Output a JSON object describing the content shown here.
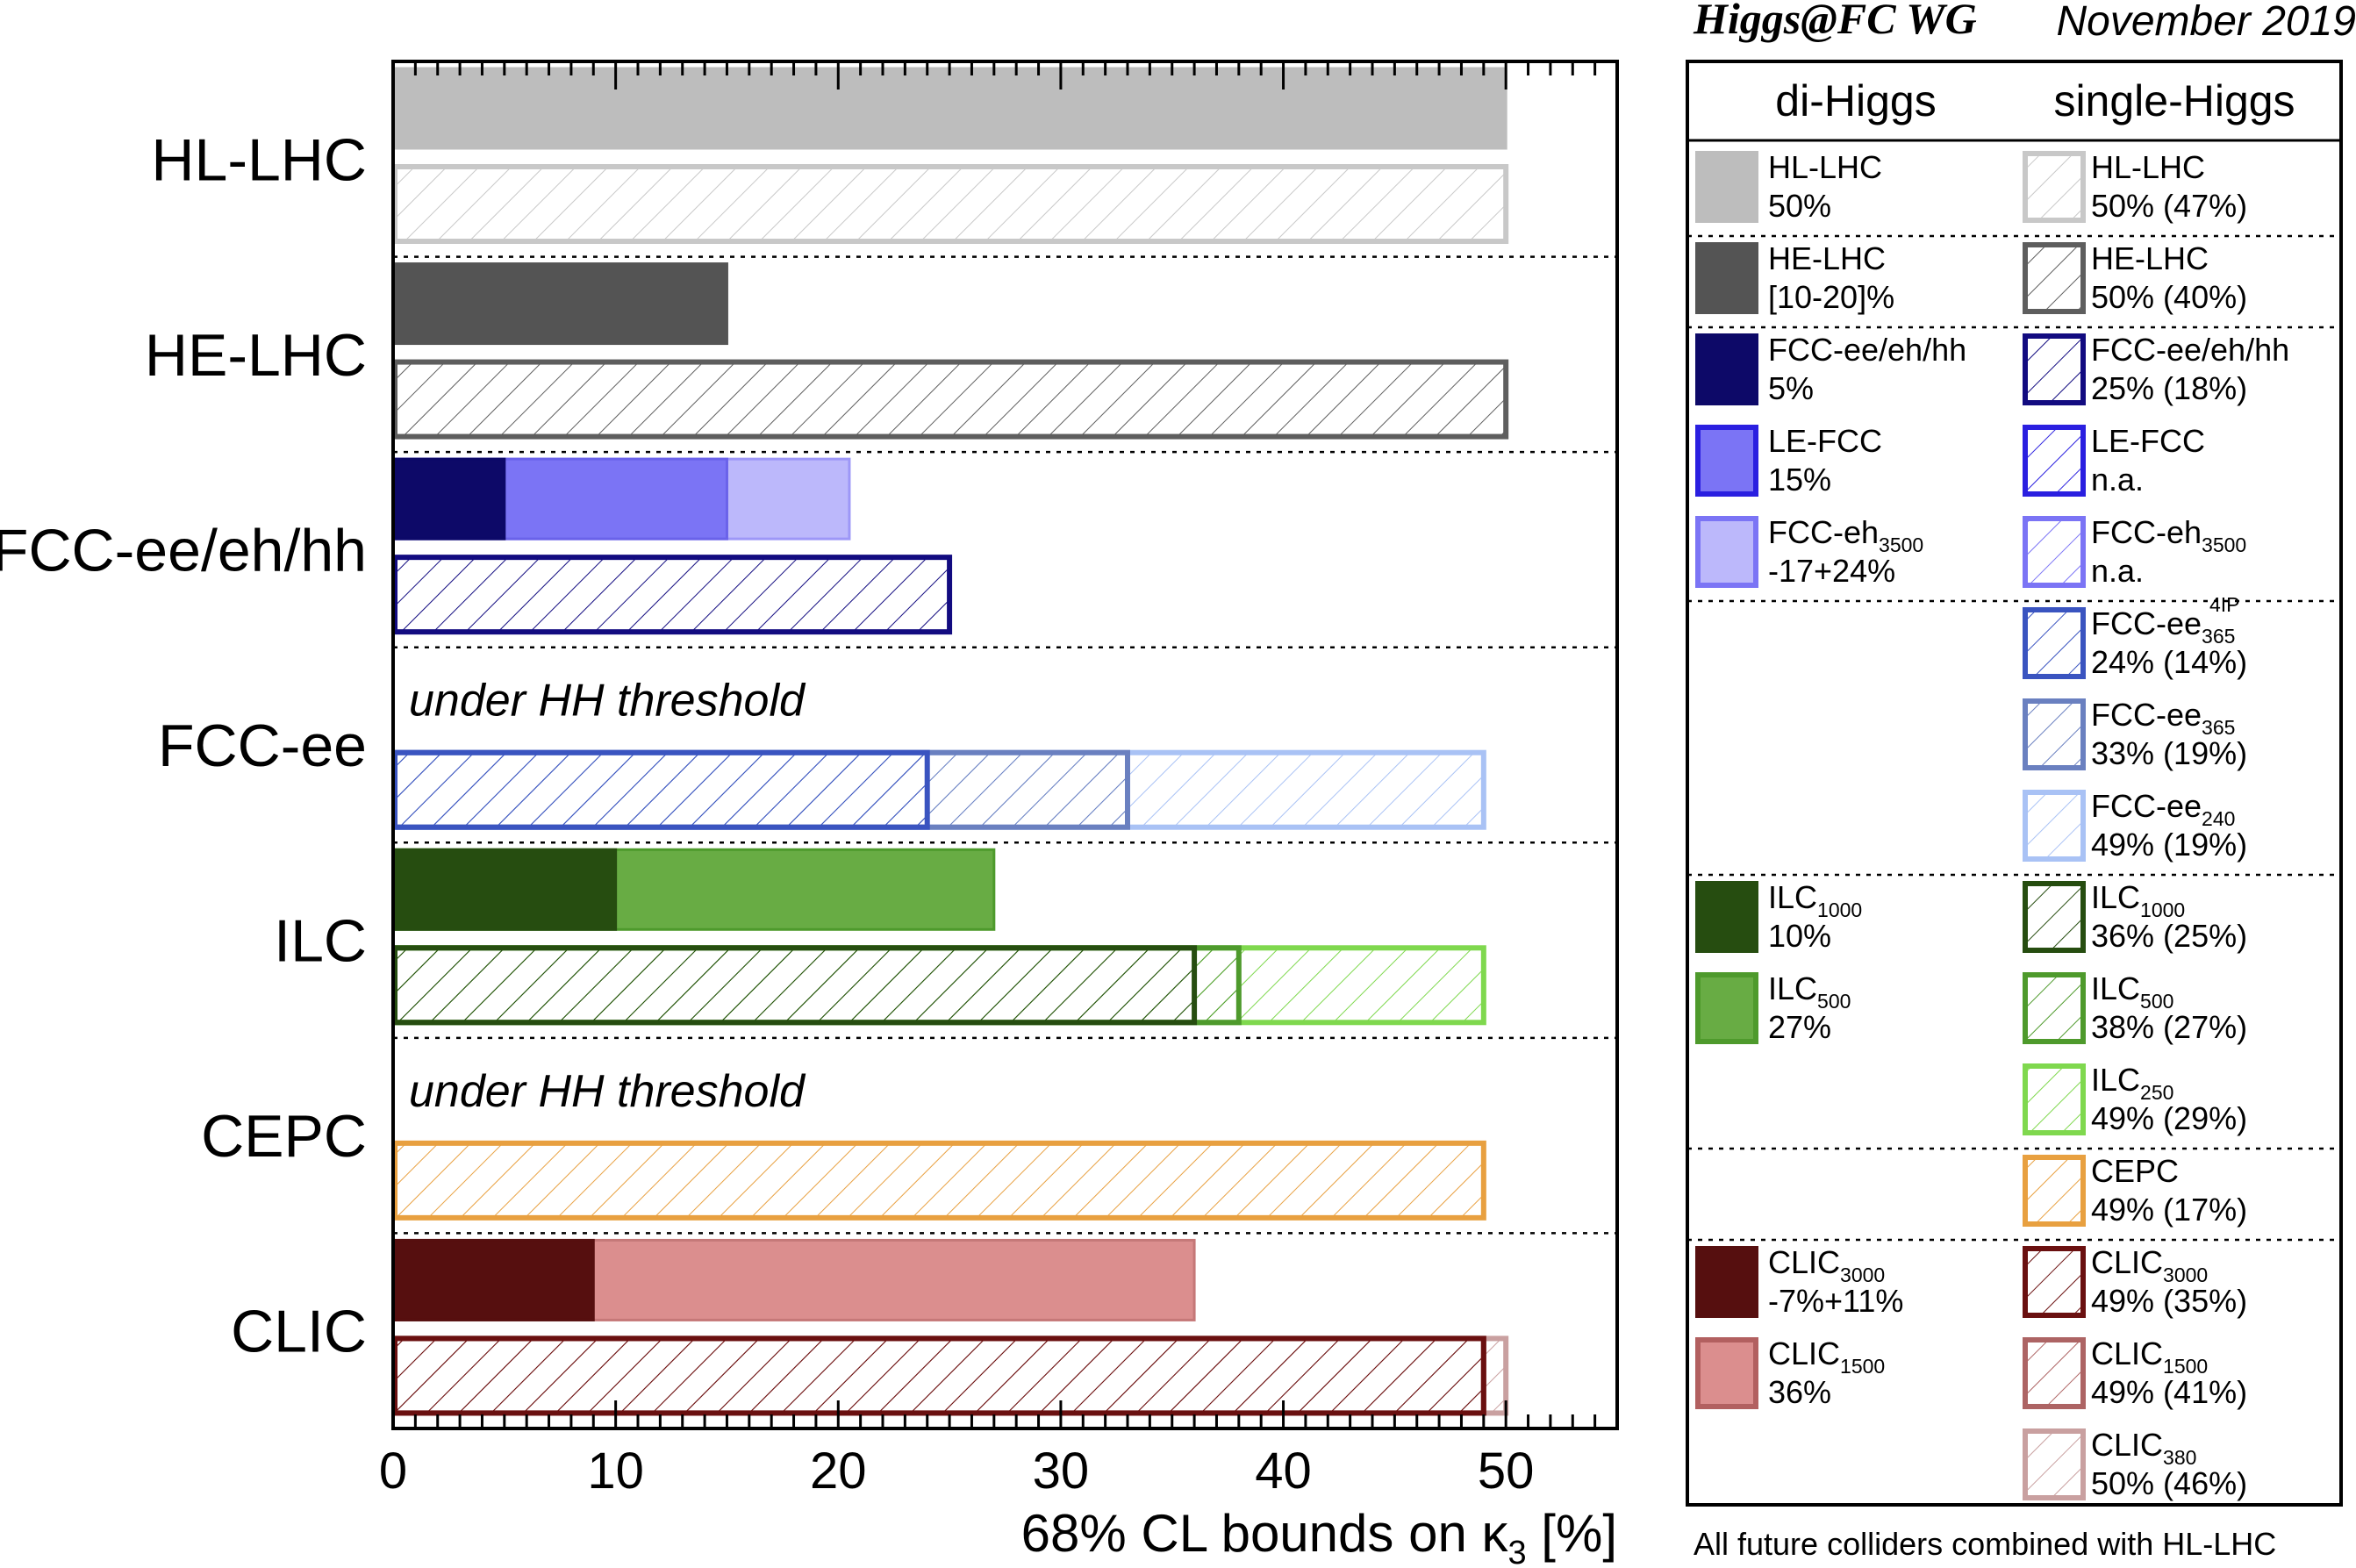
{
  "header": {
    "group": "Higgs@FC WG",
    "date": "November 2019"
  },
  "footer_note": "All future colliders combined with HL-LHC",
  "legend": {
    "col_dihiggs": "di-Higgs",
    "col_singlehiggs": "single-Higgs",
    "dihiggs": [
      {
        "name": "HL-LHC",
        "value": "50%",
        "color": "#bdbdbd",
        "border": "#bdbdbd"
      },
      {
        "name": "HE-LHC",
        "value": "[10-20]%",
        "color": "#545454",
        "border": "#545454"
      },
      {
        "name": "FCC-ee/eh/hh",
        "value": "5%",
        "color": "#0d0968",
        "border": "#0d0968"
      },
      {
        "name": "LE-FCC",
        "value": "15%",
        "color": "#7b74f5",
        "border": "#2a1fe0"
      },
      {
        "name": "FCC-eh",
        "sub": "3500",
        "value": "-17+24%",
        "color": "#bcb8fb",
        "border": "#7b74f5"
      },
      {
        "name": "ILC",
        "sub": "1000",
        "value": "10%",
        "color": "#264d10",
        "border": "#264d10"
      },
      {
        "name": "ILC",
        "sub": "500",
        "value": "27%",
        "color": "#68ac44",
        "border": "#4e9a2c"
      },
      {
        "name": "CLIC",
        "sub": "3000",
        "value": "-7%+11%",
        "color": "#560f0f",
        "border": "#560f0f"
      },
      {
        "name": "CLIC",
        "sub": "1500",
        "value": "36%",
        "color": "#db8e8e",
        "border": "#b26060"
      }
    ],
    "singlehiggs": [
      {
        "name": "HL-LHC",
        "value": "50% (47%)",
        "color": "#c8c8c8"
      },
      {
        "name": "HE-LHC",
        "value": "50% (40%)",
        "color": "#5e5e5e"
      },
      {
        "name": "FCC-ee/eh/hh",
        "value": "25% (18%)",
        "color": "#120b80"
      },
      {
        "name": "LE-FCC",
        "value": "n.a.",
        "color": "#2a1fe0"
      },
      {
        "name": "FCC-eh",
        "sub": "3500",
        "value": "n.a.",
        "color": "#7b74f5"
      },
      {
        "name": "FCC-ee",
        "sub": "365",
        "sup": "4IP",
        "value": "24% (14%)",
        "color": "#3a54c0"
      },
      {
        "name": "FCC-ee",
        "sub": "365",
        "value": "33% (19%)",
        "color": "#6a80c0"
      },
      {
        "name": "FCC-ee",
        "sub": "240",
        "value": "49% (19%)",
        "color": "#a9c2f5"
      },
      {
        "name": "ILC",
        "sub": "1000",
        "value": "36% (25%)",
        "color": "#264d10"
      },
      {
        "name": "ILC",
        "sub": "500",
        "value": "38% (27%)",
        "color": "#4e9a2c"
      },
      {
        "name": "ILC",
        "sub": "250",
        "value": "49% (29%)",
        "color": "#7fd84e"
      },
      {
        "name": "CEPC",
        "value": "49% (17%)",
        "color": "#e8a040"
      },
      {
        "name": "CLIC",
        "sub": "3000",
        "value": "49% (35%)",
        "color": "#6a1010"
      },
      {
        "name": "CLIC",
        "sub": "1500",
        "value": "49% (41%)",
        "color": "#ad6464"
      },
      {
        "name": "CLIC",
        "sub": "380",
        "value": "50% (46%)",
        "color": "#c9a0a0"
      }
    ]
  },
  "chart_data": {
    "type": "bar",
    "orientation": "horizontal",
    "xlabel": "68% CL bounds on κ",
    "xlabel_sub": "3",
    "xlabel_suffix": " [%]",
    "xlim": [
      0,
      55
    ],
    "xticks": [
      0,
      10,
      20,
      30,
      40,
      50
    ],
    "categories": [
      "HL-LHC",
      "HE-LHC",
      "FCC-ee/eh/hh",
      "FCC-ee",
      "ILC",
      "CEPC",
      "CLIC"
    ],
    "under_threshold_note": "under HH threshold",
    "groups": [
      {
        "name": "HL-LHC",
        "dihiggs": [
          {
            "label": "HL-LHC",
            "value": 50,
            "fill": "#bdbdbd",
            "stroke": "#bdbdbd"
          }
        ],
        "singlehiggs": [
          {
            "label": "HL-LHC",
            "value": 50,
            "stroke": "#c8c8c8"
          }
        ]
      },
      {
        "name": "HE-LHC",
        "dihiggs": [
          {
            "label": "HE-LHC",
            "value": 15,
            "fill": "#545454",
            "stroke": "#545454"
          }
        ],
        "singlehiggs": [
          {
            "label": "HE-LHC",
            "value": 50,
            "stroke": "#5e5e5e"
          }
        ]
      },
      {
        "name": "FCC-ee/eh/hh",
        "dihiggs": [
          {
            "label": "FCC-eh 3500",
            "value": 20.5,
            "fill": "#bcb8fb",
            "stroke": "#9d97f7"
          },
          {
            "label": "LE-FCC",
            "value": 15,
            "fill": "#7b74f5",
            "stroke": "#6a62ea"
          },
          {
            "label": "FCC-ee/eh/hh",
            "value": 5,
            "fill": "#0d0968",
            "stroke": "#0d0968"
          }
        ],
        "singlehiggs": [
          {
            "label": "FCC-ee/eh/hh",
            "value": 25,
            "stroke": "#120b80"
          }
        ]
      },
      {
        "name": "FCC-ee",
        "dihiggs": [],
        "singlehiggs": [
          {
            "label": "FCC-ee 240",
            "value": 49,
            "stroke": "#a9c2f5"
          },
          {
            "label": "FCC-ee 365",
            "value": 33,
            "stroke": "#6a80c0"
          },
          {
            "label": "FCC-ee 365 4IP",
            "value": 24,
            "stroke": "#3a54c0"
          }
        ]
      },
      {
        "name": "ILC",
        "dihiggs": [
          {
            "label": "ILC 500",
            "value": 27,
            "fill": "#68ac44",
            "stroke": "#4e9a2c"
          },
          {
            "label": "ILC 1000",
            "value": 10,
            "fill": "#264d10",
            "stroke": "#264d10"
          }
        ],
        "singlehiggs": [
          {
            "label": "ILC 250",
            "value": 49,
            "stroke": "#7fd84e"
          },
          {
            "label": "ILC 500",
            "value": 38,
            "stroke": "#4e9a2c"
          },
          {
            "label": "ILC 1000",
            "value": 36,
            "stroke": "#264d10"
          }
        ]
      },
      {
        "name": "CEPC",
        "dihiggs": [],
        "singlehiggs": [
          {
            "label": "CEPC",
            "value": 49,
            "stroke": "#e8a040"
          }
        ]
      },
      {
        "name": "CLIC",
        "dihiggs": [
          {
            "label": "CLIC 1500",
            "value": 36,
            "fill": "#db8e8e",
            "stroke": "#c57878"
          },
          {
            "label": "CLIC 3000",
            "value": 9,
            "fill": "#560f0f",
            "stroke": "#560f0f"
          }
        ],
        "singlehiggs": [
          {
            "label": "CLIC 380",
            "value": 50,
            "stroke": "#c9a0a0"
          },
          {
            "label": "CLIC 1500",
            "value": 49,
            "stroke": "#ad6464"
          },
          {
            "label": "CLIC 3000",
            "value": 49,
            "stroke": "#6a1010"
          }
        ]
      }
    ]
  }
}
